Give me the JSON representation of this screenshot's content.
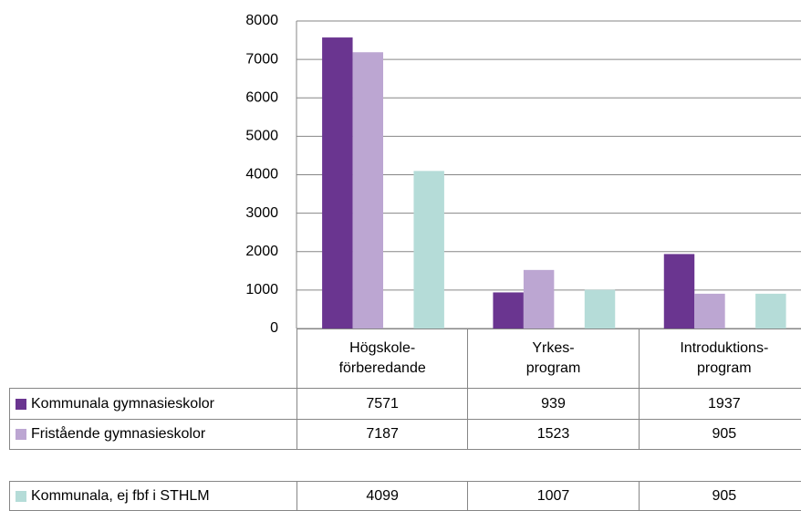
{
  "chart_data": {
    "type": "bar",
    "categories": [
      "Högskole-\nförberedande",
      "Yrkes-\nprogram",
      "Introduktions-\nprogram"
    ],
    "series": [
      {
        "name": "Kommunala gymnasieskolor",
        "color": "#6a3590",
        "values": [
          7571,
          939,
          1937
        ]
      },
      {
        "name": "Fristående gymnasieskolor",
        "color": "#bca6d2",
        "values": [
          7187,
          1523,
          905
        ]
      },
      {
        "name": "Kommunala, ej fbf i STHLM",
        "color": "#b5dcd8",
        "values": [
          4099,
          1007,
          905
        ]
      }
    ],
    "ylim": [
      0,
      8000
    ],
    "yticks": [
      0,
      1000,
      2000,
      3000,
      4000,
      5000,
      6000,
      7000,
      8000
    ],
    "grid": true
  }
}
